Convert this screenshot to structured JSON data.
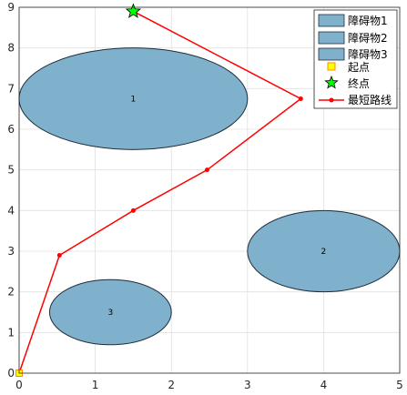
{
  "chart_data": {
    "type": "scatter",
    "xlim": [
      0,
      5
    ],
    "ylim": [
      0,
      9
    ],
    "x_ticks": [
      "0",
      "1",
      "2",
      "3",
      "4",
      "5"
    ],
    "y_ticks": [
      "0",
      "1",
      "2",
      "3",
      "4",
      "5",
      "6",
      "7",
      "8",
      "9"
    ],
    "grid": true,
    "legend_position": "top-right",
    "obstacles": [
      {
        "name": "障碍物1",
        "label": "1",
        "cx": 1.5,
        "cy": 6.75,
        "rx": 1.5,
        "ry": 1.25
      },
      {
        "name": "障碍物2",
        "label": "2",
        "cx": 4.0,
        "cy": 3.0,
        "rx": 1.0,
        "ry": 1.0
      },
      {
        "name": "障碍物3",
        "label": "3",
        "cx": 1.2,
        "cy": 1.5,
        "rx": 0.8,
        "ry": 0.8
      }
    ],
    "start": {
      "name": "起点",
      "x": 0,
      "y": 0
    },
    "end": {
      "name": "终点",
      "x": 1.5,
      "y": 8.9
    },
    "path": {
      "name": "最短路线",
      "x": [
        0,
        0.53,
        1.5,
        2.47,
        3.7,
        1.5
      ],
      "y": [
        0,
        2.9,
        4.0,
        5.0,
        6.75,
        8.9
      ]
    },
    "colors": {
      "obstacle_fill": "#7fb0cc",
      "obstacle_edge": "#1f2d3a",
      "path": "#ff0000",
      "start": "#ffff00",
      "end": "#00ff00",
      "grid": "#e0e0e0",
      "axis": "#262626"
    }
  }
}
